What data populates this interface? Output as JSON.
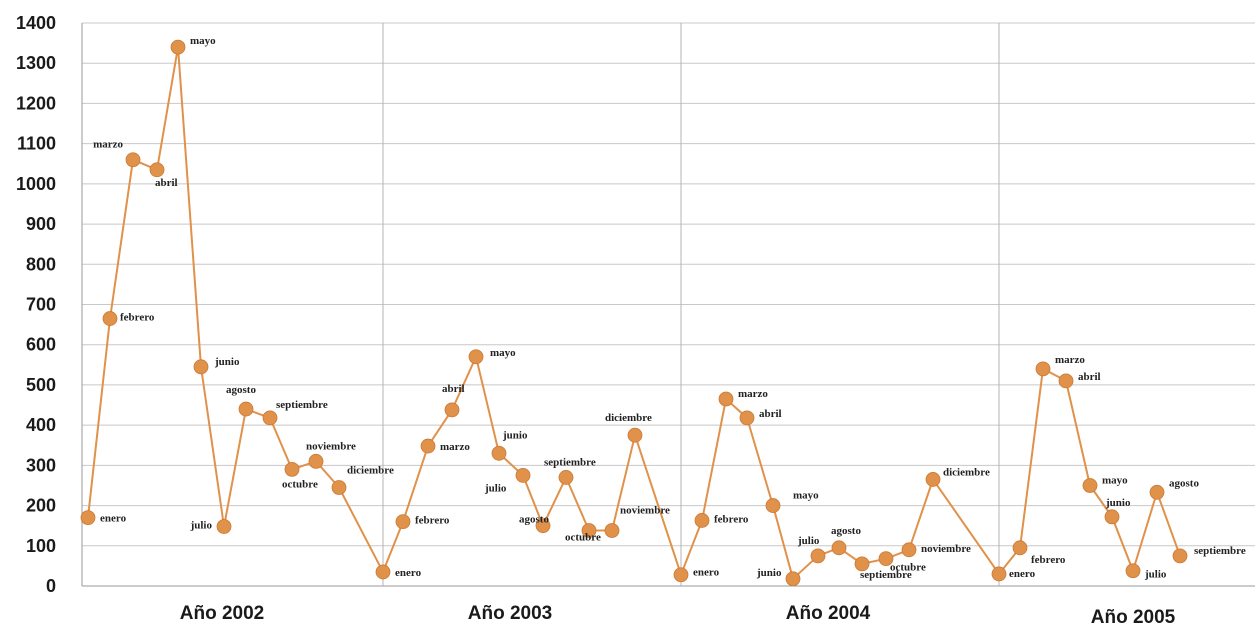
{
  "chart_data": {
    "type": "line",
    "title": "",
    "xlabel": "",
    "ylabel": "",
    "ylim": [
      0,
      1400
    ],
    "y_ticks": [
      "0",
      "100",
      "200",
      "300",
      "400",
      "500",
      "600",
      "700",
      "800",
      "900",
      "1000",
      "1100",
      "1200",
      "1300",
      "1400"
    ],
    "grid": true,
    "legend": "none",
    "colors": {
      "line": "#e0914a",
      "marker": "#e0914a",
      "grid": "#c8c8c8",
      "text": "#1a1a1a"
    },
    "years": [
      {
        "label": "Año 2002",
        "points": [
          {
            "label": "enero",
            "value": 170
          },
          {
            "label": "febrero",
            "value": 665
          },
          {
            "label": "marzo",
            "value": 1060
          },
          {
            "label": "abril",
            "value": 1035
          },
          {
            "label": "mayo",
            "value": 1340
          },
          {
            "label": "junio",
            "value": 545
          },
          {
            "label": "julio",
            "value": 148
          },
          {
            "label": "agosto",
            "value": 440
          },
          {
            "label": "septiembre",
            "value": 418
          },
          {
            "label": "octubre",
            "value": 290
          },
          {
            "label": "noviembre",
            "value": 310
          },
          {
            "label": "diciembre",
            "value": 245
          }
        ]
      },
      {
        "label": "Año 2003",
        "points": [
          {
            "label": "enero",
            "value": 35
          },
          {
            "label": "febrero",
            "value": 160
          },
          {
            "label": "marzo",
            "value": 348
          },
          {
            "label": "abril",
            "value": 438
          },
          {
            "label": "mayo",
            "value": 570
          },
          {
            "label": "junio",
            "value": 330
          },
          {
            "label": "julio",
            "value": 275
          },
          {
            "label": "agosto",
            "value": 150
          },
          {
            "label": "septiembre",
            "value": 270
          },
          {
            "label": "octubre",
            "value": 138
          },
          {
            "label": "noviembre",
            "value": 138
          },
          {
            "label": "diciembre",
            "value": 375
          }
        ]
      },
      {
        "label": "Año 2004",
        "points": [
          {
            "label": "enero",
            "value": 28
          },
          {
            "label": "febrero",
            "value": 163
          },
          {
            "label": "marzo",
            "value": 465
          },
          {
            "label": "abril",
            "value": 418
          },
          {
            "label": "mayo",
            "value": 200
          },
          {
            "label": "junio",
            "value": 18
          },
          {
            "label": "julio",
            "value": 75
          },
          {
            "label": "agosto",
            "value": 95
          },
          {
            "label": "septiembre",
            "value": 55
          },
          {
            "label": "octubre",
            "value": 68
          },
          {
            "label": "noviembre",
            "value": 90
          },
          {
            "label": "diciembre",
            "value": 265
          }
        ]
      },
      {
        "label": "Año 2005",
        "points": [
          {
            "label": "enero",
            "value": 30
          },
          {
            "label": "febrero",
            "value": 95
          },
          {
            "label": "marzo",
            "value": 540
          },
          {
            "label": "abril",
            "value": 510
          },
          {
            "label": "mayo",
            "value": 250
          },
          {
            "label": "junio",
            "value": 172
          },
          {
            "label": "julio",
            "value": 38
          },
          {
            "label": "agosto",
            "value": 233
          },
          {
            "label": "septiembre",
            "value": 75
          }
        ]
      }
    ]
  }
}
